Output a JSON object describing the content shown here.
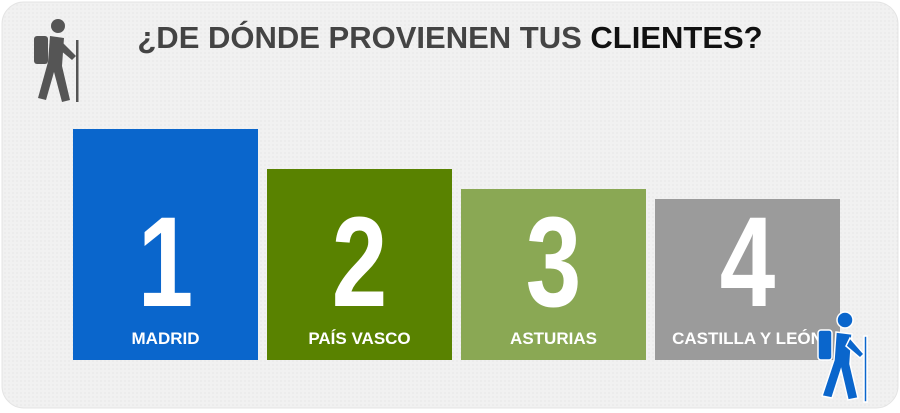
{
  "title": {
    "lead": "¿DE DÓNDE PROVIENEN TUS",
    "highlight": "CLIENTES?"
  },
  "items": [
    {
      "rank": "1",
      "label": "MADRID",
      "color": "#0a66cc"
    },
    {
      "rank": "2",
      "label": "PAÍS VASCO",
      "color": "#598200"
    },
    {
      "rank": "3",
      "label": "ASTURIAS",
      "color": "#8aa854"
    },
    {
      "rank": "4",
      "label": "CASTILLA Y LEÓN",
      "color": "#9b9b9b"
    }
  ]
}
